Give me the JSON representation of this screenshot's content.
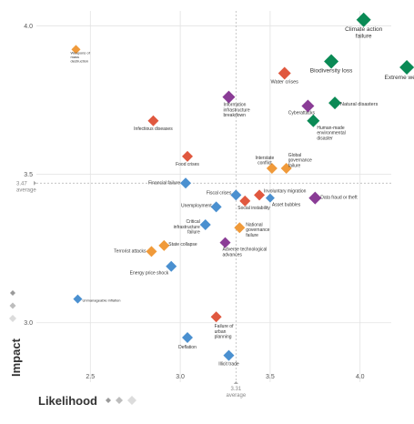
{
  "chart_data": {
    "type": "scatter",
    "xlabel": "Likelihood",
    "ylabel": "Impact",
    "xlim": [
      2.2,
      4.3
    ],
    "ylim": [
      2.8,
      4.05
    ],
    "x_ticks": [
      "2.5",
      "3.0",
      "3.5",
      "4.0"
    ],
    "y_ticks": [
      "3.0",
      "3.5",
      "4.0"
    ],
    "avg_x": {
      "value": 3.31,
      "label_value": "3.31",
      "label_text": "average"
    },
    "avg_y": {
      "value": 3.47,
      "label_value": "3.47",
      "label_text": "average"
    },
    "grid": true,
    "category_colors": {
      "economic": "#4a90d0",
      "environmental": "#0a8a55",
      "geopolitical": "#f09a3a",
      "societal": "#e0583f",
      "technological": "#8a3c96"
    },
    "points": [
      {
        "label": "Climate action failure",
        "cat": "environmental",
        "x": 4.02,
        "y": 4.02,
        "size": 8,
        "fs": 6.5
      },
      {
        "label": "Extreme weather",
        "cat": "environmental",
        "x": 4.26,
        "y": 3.86,
        "size": 8,
        "fs": 6.5
      },
      {
        "label": "Biodiversity loss",
        "cat": "environmental",
        "x": 3.84,
        "y": 3.88,
        "size": 8,
        "fs": 6.5
      },
      {
        "label": "Water crises",
        "cat": "societal",
        "x": 3.58,
        "y": 3.84,
        "size": 7,
        "fs": 5.5
      },
      {
        "label": "Natural disasters",
        "cat": "environmental",
        "x": 3.86,
        "y": 3.74,
        "size": 7,
        "fs": 5.5
      },
      {
        "label": "Human-made environmental disaster",
        "cat": "environmental",
        "x": 3.74,
        "y": 3.68,
        "size": 7,
        "fs": 5
      },
      {
        "label": "Cyberattacks",
        "cat": "technological",
        "x": 3.71,
        "y": 3.73,
        "size": 7,
        "fs": 5
      },
      {
        "label": "Information infrastructure breakdown",
        "cat": "technological",
        "x": 3.27,
        "y": 3.76,
        "size": 7,
        "fs": 5
      },
      {
        "label": "Weapons of mass destruction",
        "cat": "geopolitical",
        "x": 2.42,
        "y": 3.92,
        "size": 5,
        "fs": 4
      },
      {
        "label": "Infectious diseases",
        "cat": "societal",
        "x": 2.85,
        "y": 3.68,
        "size": 6,
        "fs": 5
      },
      {
        "label": "Food crises",
        "cat": "societal",
        "x": 3.04,
        "y": 3.56,
        "size": 6,
        "fs": 5
      },
      {
        "label": "Interstate conflict",
        "cat": "geopolitical",
        "x": 3.51,
        "y": 3.52,
        "size": 6,
        "fs": 5
      },
      {
        "label": "Global governance failure",
        "cat": "geopolitical",
        "x": 3.59,
        "y": 3.52,
        "size": 6,
        "fs": 5
      },
      {
        "label": "Financial failure",
        "cat": "economic",
        "x": 3.03,
        "y": 3.47,
        "size": 6,
        "fs": 5
      },
      {
        "label": "Fiscal crises",
        "cat": "economic",
        "x": 3.31,
        "y": 3.43,
        "size": 6,
        "fs": 5
      },
      {
        "label": "Involuntary migration",
        "cat": "societal",
        "x": 3.44,
        "y": 3.43,
        "size": 6,
        "fs": 5
      },
      {
        "label": "Unemployment",
        "cat": "economic",
        "x": 3.2,
        "y": 3.39,
        "size": 6,
        "fs": 5
      },
      {
        "label": "Social instability",
        "cat": "societal",
        "x": 3.36,
        "y": 3.41,
        "size": 6,
        "fs": 5
      },
      {
        "label": "Asset bubbles",
        "cat": "economic",
        "x": 3.5,
        "y": 3.42,
        "size": 5,
        "fs": 5
      },
      {
        "label": "Data fraud or theft",
        "cat": "technological",
        "x": 3.75,
        "y": 3.42,
        "size": 7,
        "fs": 5
      },
      {
        "label": "Critical infrastructure failure",
        "cat": "economic",
        "x": 3.14,
        "y": 3.33,
        "size": 6,
        "fs": 5
      },
      {
        "label": "National governance failure",
        "cat": "geopolitical",
        "x": 3.33,
        "y": 3.32,
        "size": 6,
        "fs": 5
      },
      {
        "label": "State collapse",
        "cat": "geopolitical",
        "x": 2.91,
        "y": 3.26,
        "size": 6,
        "fs": 5
      },
      {
        "label": "Adverse technological advances",
        "cat": "technological",
        "x": 3.25,
        "y": 3.27,
        "size": 6,
        "fs": 5
      },
      {
        "label": "Terrorist attacks",
        "cat": "geopolitical",
        "x": 2.84,
        "y": 3.24,
        "size": 6,
        "fs": 5
      },
      {
        "label": "Energy price shock",
        "cat": "economic",
        "x": 2.95,
        "y": 3.19,
        "size": 6,
        "fs": 5
      },
      {
        "label": "Unmanageable inflation",
        "cat": "economic",
        "x": 2.43,
        "y": 3.08,
        "size": 5,
        "fs": 4
      },
      {
        "label": "Failure of urban planning",
        "cat": "societal",
        "x": 3.2,
        "y": 3.02,
        "size": 6,
        "fs": 5
      },
      {
        "label": "Deflation",
        "cat": "economic",
        "x": 3.04,
        "y": 2.95,
        "size": 6,
        "fs": 5
      },
      {
        "label": "Illicit trade",
        "cat": "economic",
        "x": 3.27,
        "y": 2.89,
        "size": 6,
        "fs": 5
      }
    ]
  }
}
